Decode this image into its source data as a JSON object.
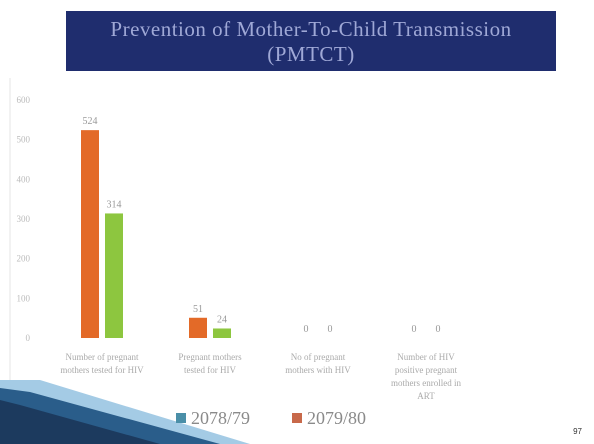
{
  "slide": {
    "title": "Prevention of Mother-To-Child Transmission (PMTCT)",
    "page_number": "97"
  },
  "colors": {
    "title_bg": "#1f2d6e",
    "title_text": "#9fa8d6",
    "series_2078": "#e36a28",
    "series_2079": "#8dc63f",
    "legend_2078": "#4a8fa8",
    "legend_2079": "#c8694a",
    "corner_dark": "#1c3a5e",
    "corner_light": "#5aa0d0"
  },
  "chart_data": {
    "type": "bar",
    "ylim": [
      0,
      600
    ],
    "yticks": [
      "0",
      "100",
      "200",
      "300",
      "400",
      "500",
      "600"
    ],
    "categories": [
      [
        "Number of pregnant",
        "mothers tested for HIV"
      ],
      [
        "Pregnant mothers",
        "tested for HIV"
      ],
      [
        "No of pregnant",
        "mothers with HIV"
      ],
      [
        "Number of HIV",
        "positive pregnant",
        "mothers enrolled in",
        "ART"
      ]
    ],
    "series": [
      {
        "name": "2078/79",
        "values": [
          524,
          51,
          0,
          0
        ],
        "labels": [
          "524",
          "51",
          "0",
          "0"
        ]
      },
      {
        "name": "2079/80",
        "values": [
          314,
          24,
          0,
          0
        ],
        "labels": [
          "314",
          "24",
          "0",
          "0"
        ]
      }
    ],
    "legend": [
      "2078/79",
      "2079/80"
    ],
    "legend_position": "bottom"
  }
}
